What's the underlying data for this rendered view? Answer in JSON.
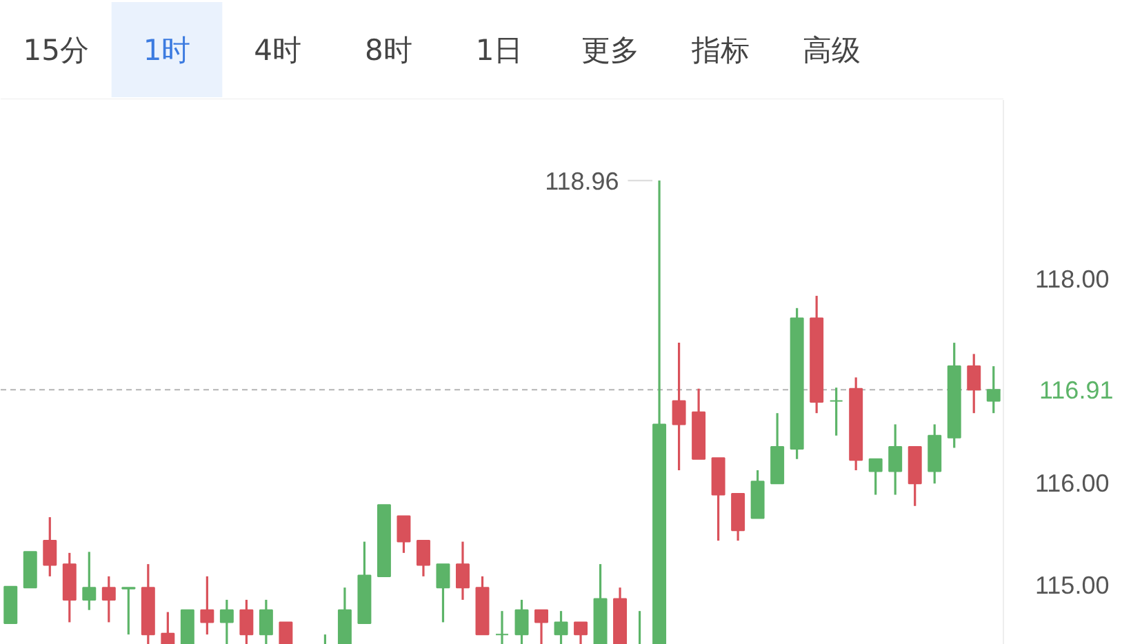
{
  "chart_data": {
    "type": "candlestick",
    "categories": [
      null,
      null,
      null,
      null,
      null,
      null,
      null,
      null,
      null,
      null,
      null,
      null,
      null,
      null,
      null,
      null,
      null,
      null,
      null,
      null,
      null,
      null,
      null,
      null,
      null,
      null,
      null,
      null,
      null,
      null,
      null,
      null,
      null,
      null,
      null,
      null,
      null,
      null,
      null,
      null,
      null,
      null,
      null,
      null,
      null,
      null,
      null,
      null,
      null,
      null,
      null
    ],
    "ohlc": [
      [
        114.62,
        114.98,
        114.62,
        114.98
      ],
      [
        114.97,
        115.32,
        114.97,
        115.32
      ],
      [
        115.43,
        115.66,
        115.08,
        115.19
      ],
      [
        115.2,
        115.31,
        114.63,
        114.85
      ],
      [
        114.85,
        115.32,
        114.75,
        114.97
      ],
      [
        114.97,
        115.08,
        114.63,
        114.85
      ],
      [
        114.96,
        114.97,
        114.51,
        114.97
      ],
      [
        114.97,
        115.2,
        114.41,
        114.51
      ],
      [
        114.52,
        114.73,
        114.41,
        114.41
      ],
      [
        114.41,
        114.75,
        114.41,
        114.75
      ],
      [
        114.75,
        115.08,
        114.51,
        114.63
      ],
      [
        114.63,
        114.85,
        114.41,
        114.75
      ],
      [
        114.75,
        114.85,
        114.41,
        114.51
      ],
      [
        114.51,
        114.85,
        114.41,
        114.75
      ],
      [
        114.63,
        114.63,
        114.41,
        114.41
      ],
      null,
      [
        114.41,
        114.51,
        114.41,
        114.41
      ],
      [
        114.41,
        114.97,
        114.41,
        114.75
      ],
      [
        114.62,
        115.42,
        114.62,
        115.09
      ],
      [
        115.08,
        115.78,
        115.08,
        115.78
      ],
      [
        115.67,
        115.67,
        115.31,
        115.42
      ],
      [
        115.43,
        115.43,
        115.08,
        115.19
      ],
      [
        114.97,
        115.2,
        114.63,
        115.2
      ],
      [
        115.2,
        115.42,
        114.85,
        114.97
      ],
      [
        114.97,
        115.08,
        114.51,
        114.51
      ],
      [
        114.51,
        114.74,
        114.41,
        114.51
      ],
      [
        114.51,
        114.85,
        114.41,
        114.75
      ],
      [
        114.75,
        114.75,
        114.41,
        114.63
      ],
      [
        114.51,
        114.74,
        114.41,
        114.63
      ],
      [
        114.63,
        114.63,
        114.41,
        114.51
      ],
      [
        114.41,
        115.2,
        114.41,
        114.86
      ],
      [
        114.86,
        114.97,
        114.41,
        114.41
      ],
      [
        114.41,
        114.74,
        114.41,
        114.41
      ],
      [
        114.41,
        118.96,
        114.41,
        116.57
      ],
      [
        116.8,
        117.37,
        116.12,
        116.57
      ],
      [
        116.69,
        116.92,
        116.23,
        116.23
      ],
      [
        116.24,
        116.24,
        115.43,
        115.88
      ],
      [
        115.89,
        115.89,
        115.43,
        115.53
      ],
      [
        115.65,
        116.12,
        115.65,
        116.01
      ],
      [
        115.99,
        116.68,
        115.99,
        116.35
      ],
      [
        116.33,
        117.71,
        116.23,
        117.61
      ],
      [
        117.61,
        117.83,
        116.68,
        116.79
      ],
      [
        116.8,
        116.93,
        116.46,
        116.8
      ],
      [
        116.92,
        117.03,
        116.12,
        116.22
      ],
      [
        116.11,
        116.23,
        115.88,
        116.23
      ],
      [
        116.11,
        116.57,
        115.88,
        116.35
      ],
      [
        116.35,
        116.35,
        115.77,
        115.99
      ],
      [
        116.11,
        116.57,
        115.99,
        116.46
      ],
      [
        116.44,
        117.37,
        116.34,
        117.14
      ],
      [
        117.14,
        117.26,
        116.68,
        116.91
      ],
      [
        116.8,
        117.14,
        116.68,
        116.91
      ]
    ],
    "colors": [
      "#5cb468",
      "#5cb468",
      "#d9515a",
      "#d9515a",
      "#5cb468",
      "#d9515a",
      "#5cb468",
      "#d9515a",
      "#d9515a",
      "#5cb468",
      "#d9515a",
      "#5cb468",
      "#d9515a",
      "#5cb468",
      "#d9515a",
      null,
      "#5cb468",
      "#5cb468",
      "#5cb468",
      "#5cb468",
      "#d9515a",
      "#d9515a",
      "#5cb468",
      "#d9515a",
      "#d9515a",
      "#5cb468",
      "#5cb468",
      "#d9515a",
      "#5cb468",
      "#d9515a",
      "#5cb468",
      "#d9515a",
      "#5cb468",
      "#5cb468",
      "#d9515a",
      "#d9515a",
      "#d9515a",
      "#d9515a",
      "#5cb468",
      "#5cb468",
      "#5cb468",
      "#d9515a",
      "#5cb468",
      "#d9515a",
      "#5cb468",
      "#5cb468",
      "#d9515a",
      "#5cb468",
      "#5cb468",
      "#d9515a",
      "#5cb468"
    ],
    "value_labels": [
      null,
      null,
      null,
      null,
      null,
      null,
      null,
      null,
      null,
      null,
      null,
      null,
      null,
      null,
      null,
      null,
      null,
      null,
      null,
      null,
      null,
      null,
      null,
      null,
      null,
      null,
      null,
      null,
      null,
      null,
      null,
      null,
      null,
      "118.96",
      null,
      null,
      null,
      null,
      null,
      null,
      null,
      null,
      null,
      null,
      null,
      null,
      null,
      null,
      null,
      null,
      null
    ],
    "ylim": [
      114.41,
      119.75
    ],
    "yticks": [
      {
        "value": 115,
        "label": "115.00"
      },
      {
        "value": 116,
        "label": "116.00"
      },
      {
        "value": 118,
        "label": "118.00"
      }
    ],
    "grid": false,
    "tick_labels": "y",
    "ref_lines": [
      {
        "axis": "y",
        "value": 116.91,
        "label": "116.91",
        "color": "#b4b4b4",
        "line_style": "dashed"
      }
    ],
    "annotations": [
      "15分",
      "1时",
      "4时",
      "8时",
      "1日",
      "更多",
      "指标",
      "高级"
    ]
  }
}
